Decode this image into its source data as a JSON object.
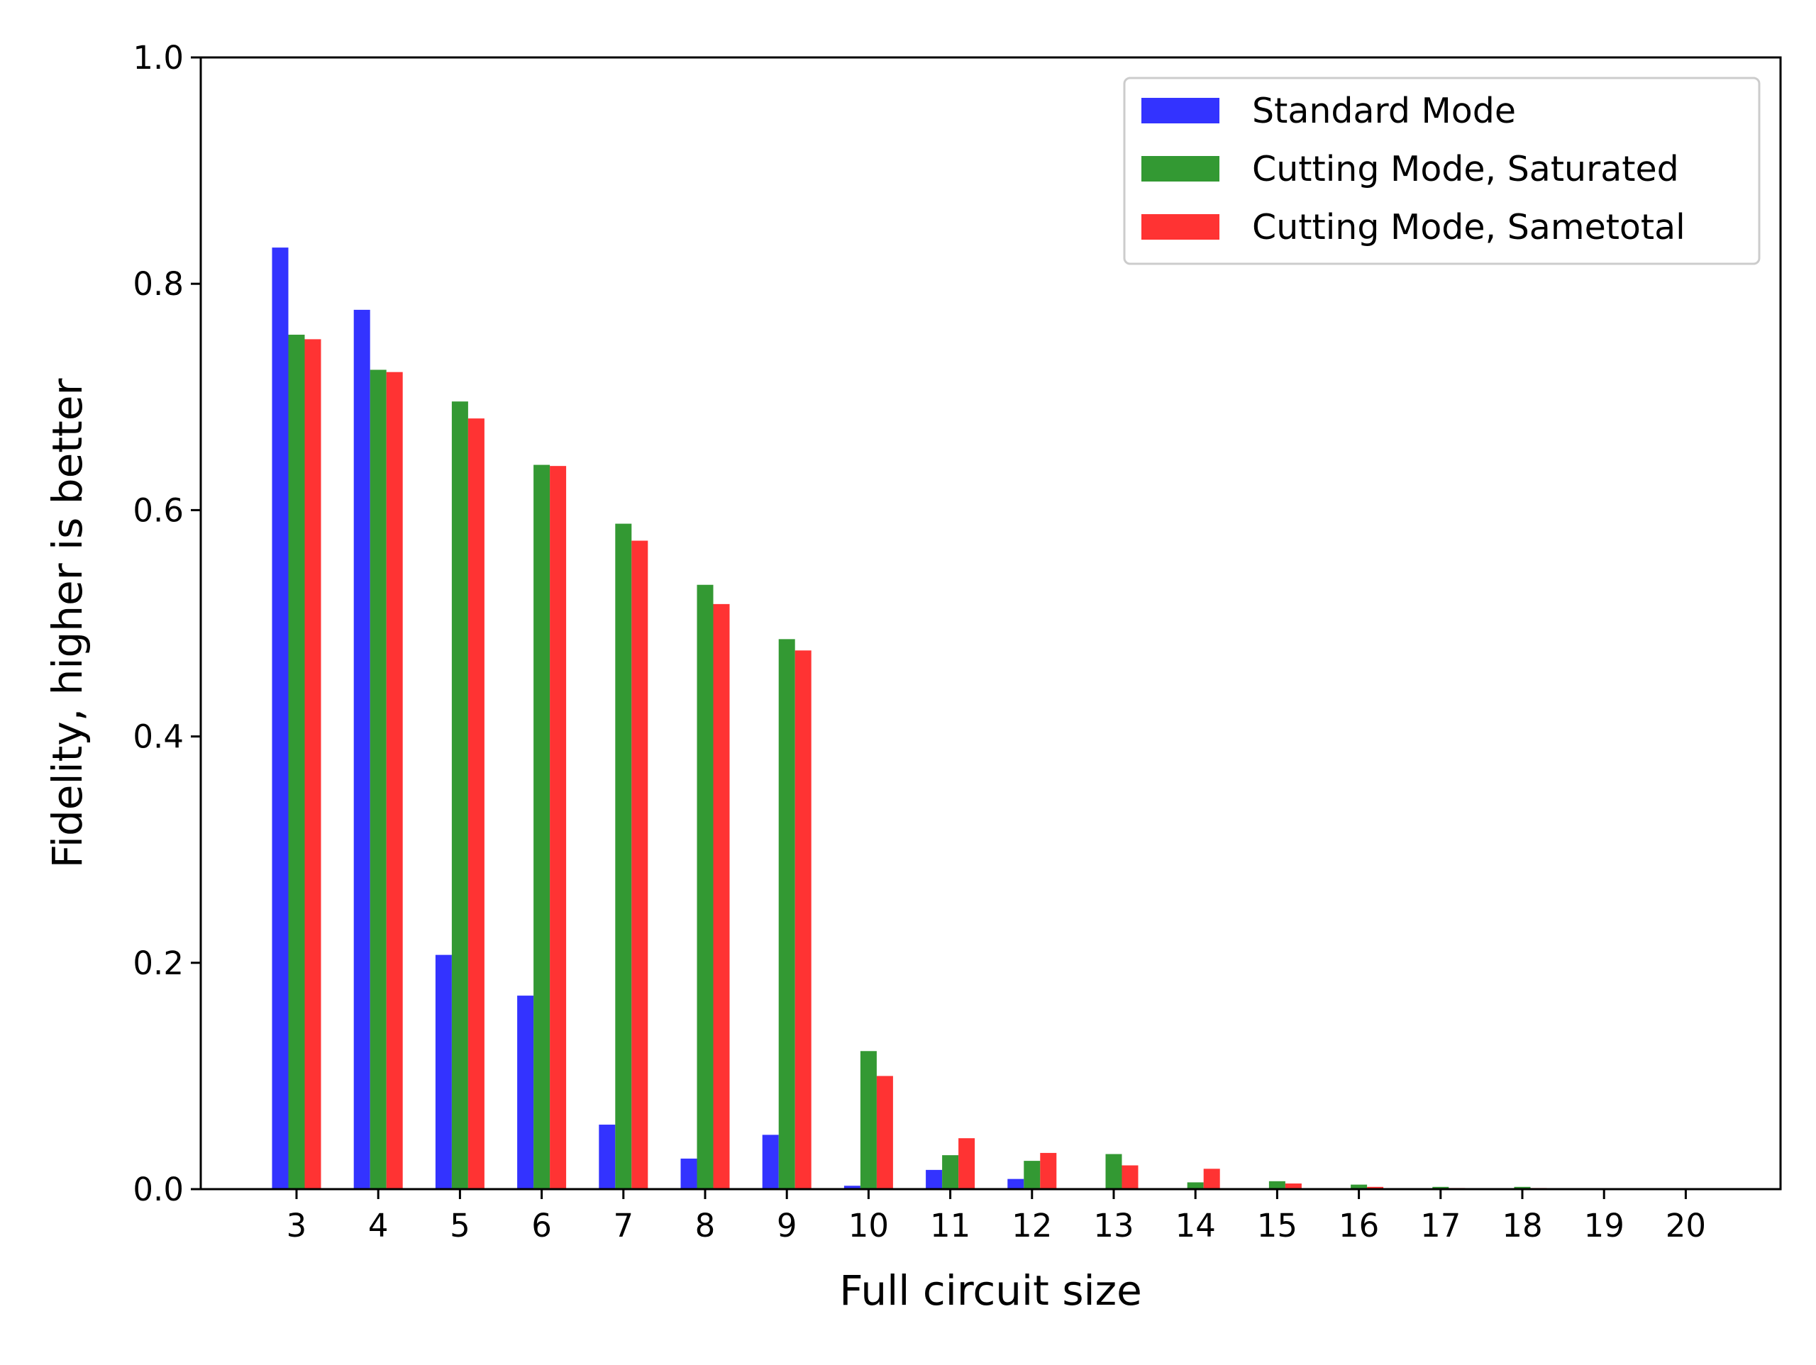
{
  "chart_data": {
    "type": "bar",
    "title": "",
    "xlabel": "Full circuit size",
    "ylabel": "Fidelity, higher is better",
    "categories": [
      "3",
      "4",
      "5",
      "6",
      "7",
      "8",
      "9",
      "10",
      "11",
      "12",
      "13",
      "14",
      "15",
      "16",
      "17",
      "18",
      "19",
      "20"
    ],
    "ylim": [
      0,
      1.0
    ],
    "yticks": [
      "0.0",
      "0.2",
      "0.4",
      "0.6",
      "0.8",
      "1.0"
    ],
    "grid": false,
    "legend_position": "top-right",
    "series": [
      {
        "name": "Standard Mode",
        "color": "#3333ff",
        "values": [
          0.832,
          0.777,
          0.207,
          0.171,
          0.057,
          0.027,
          0.048,
          0.003,
          0.017,
          0.009,
          0.0,
          0.0,
          0.0,
          0.0,
          0.0,
          0.0,
          0.0,
          0.0
        ]
      },
      {
        "name": "Cutting Mode, Saturated",
        "color": "#339933",
        "values": [
          0.755,
          0.724,
          0.696,
          0.64,
          0.588,
          0.534,
          0.486,
          0.122,
          0.03,
          0.025,
          0.031,
          0.006,
          0.007,
          0.004,
          0.002,
          0.002,
          0.0,
          0.0
        ]
      },
      {
        "name": "Cutting Mode, Sametotal",
        "color": "#ff3333",
        "values": [
          0.751,
          0.722,
          0.681,
          0.639,
          0.573,
          0.517,
          0.476,
          0.1,
          0.045,
          0.032,
          0.021,
          0.018,
          0.005,
          0.002,
          0.001,
          0.001,
          0.0,
          0.0
        ]
      }
    ]
  }
}
